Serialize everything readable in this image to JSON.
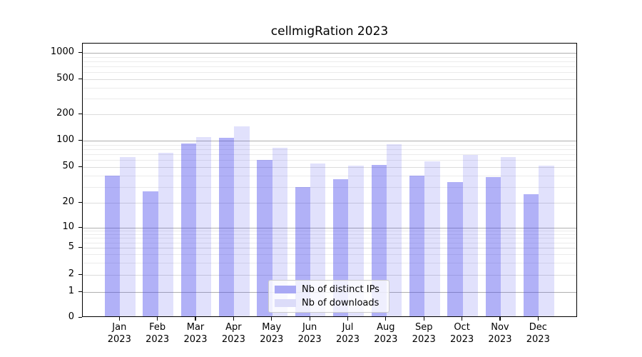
{
  "chart_data": {
    "type": "bar",
    "title": "cellmigRation 2023",
    "categories": [
      "Jan",
      "Feb",
      "Mar",
      "Apr",
      "May",
      "Jun",
      "Jul",
      "Aug",
      "Sep",
      "Oct",
      "Nov",
      "Dec"
    ],
    "x_year": "2023",
    "series": [
      {
        "name": "Nb of distinct IPs",
        "base_color": "#4646eb",
        "alpha": 0.42,
        "rendered_color": "#a9a9f5",
        "values": [
          39,
          26,
          89,
          104,
          58,
          29,
          35,
          51,
          39,
          33,
          37,
          24
        ]
      },
      {
        "name": "Nb of downloads",
        "base_color": "#4646eb",
        "alpha": 0.16,
        "rendered_color": "#dcdcf9",
        "values": [
          63,
          70,
          106,
          140,
          80,
          53,
          50,
          88,
          56,
          66,
          63,
          50
        ]
      }
    ],
    "y_ticks": [
      0,
      1,
      2,
      5,
      10,
      20,
      50,
      100,
      200,
      500,
      1000
    ],
    "y_minor_ticks": [
      3,
      4,
      6,
      7,
      8,
      9,
      30,
      40,
      60,
      70,
      80,
      90,
      300,
      400,
      600,
      700,
      800,
      900
    ],
    "yscale": "pseudo-log",
    "ylim": [
      0,
      1280
    ],
    "grid": true,
    "legend_position": "lower center"
  },
  "colors": {
    "background": "#ffffff",
    "axis": "#000000",
    "text": "#000000",
    "grid_major": "#b0b0b0",
    "grid_mid": "#dcdcdc",
    "grid_minor": "#ebebeb",
    "legend_border": "#cccccc"
  }
}
